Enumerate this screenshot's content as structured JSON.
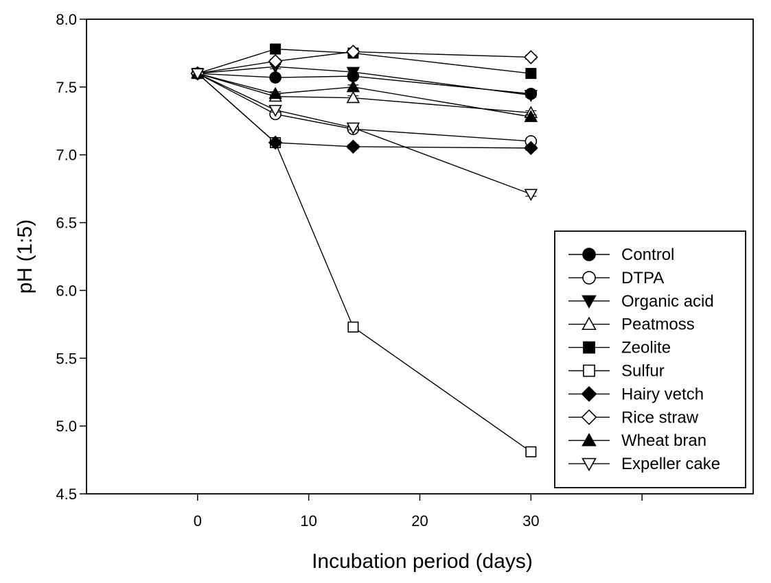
{
  "chart_data": {
    "type": "line",
    "title": "",
    "xlabel": "Incubation period (days)",
    "ylabel": "pH (1:5)",
    "xlim": [
      -10,
      50
    ],
    "ylim": [
      4.5,
      8.0
    ],
    "x_ticks": [
      0,
      10,
      20,
      30
    ],
    "x_tick_labels": [
      "0",
      "10",
      "20",
      "30"
    ],
    "extra_x_tick_marks": [
      40
    ],
    "y_ticks": [
      4.5,
      5.0,
      5.5,
      6.0,
      6.5,
      7.0,
      7.5,
      8.0
    ],
    "y_tick_labels": [
      "4.5",
      "5.0",
      "5.5",
      "6.0",
      "6.5",
      "7.0",
      "7.5",
      "8.0"
    ],
    "grid": false,
    "legend_position": "bottom-right",
    "x": [
      0,
      7,
      14,
      30
    ],
    "series": [
      {
        "name": "Control",
        "marker": "circle",
        "fill": "filled",
        "values": [
          7.6,
          7.57,
          7.58,
          7.45
        ]
      },
      {
        "name": "DTPA",
        "marker": "circle",
        "fill": "open",
        "values": [
          7.6,
          7.3,
          7.19,
          7.1
        ]
      },
      {
        "name": "Organic acid",
        "marker": "triangle-down",
        "fill": "filled",
        "values": [
          7.6,
          7.65,
          7.61,
          7.44
        ]
      },
      {
        "name": "Peatmoss",
        "marker": "triangle-up",
        "fill": "open",
        "values": [
          7.6,
          7.43,
          7.42,
          7.31
        ]
      },
      {
        "name": "Zeolite",
        "marker": "square",
        "fill": "filled",
        "values": [
          7.6,
          7.78,
          7.75,
          7.6
        ]
      },
      {
        "name": "Sulfur",
        "marker": "square",
        "fill": "open",
        "values": [
          7.6,
          7.09,
          5.73,
          4.81
        ]
      },
      {
        "name": "Hairy  vetch",
        "marker": "diamond",
        "fill": "filled",
        "values": [
          7.6,
          7.09,
          7.06,
          7.05
        ]
      },
      {
        "name": "Rice straw",
        "marker": "diamond",
        "fill": "open",
        "values": [
          7.6,
          7.69,
          7.76,
          7.72
        ]
      },
      {
        "name": "Wheat bran",
        "marker": "triangle-up",
        "fill": "filled",
        "values": [
          7.6,
          7.45,
          7.5,
          7.28
        ]
      },
      {
        "name": "Expeller cake",
        "marker": "triangle-down",
        "fill": "open",
        "values": [
          7.6,
          7.33,
          7.2,
          6.71
        ]
      }
    ]
  }
}
